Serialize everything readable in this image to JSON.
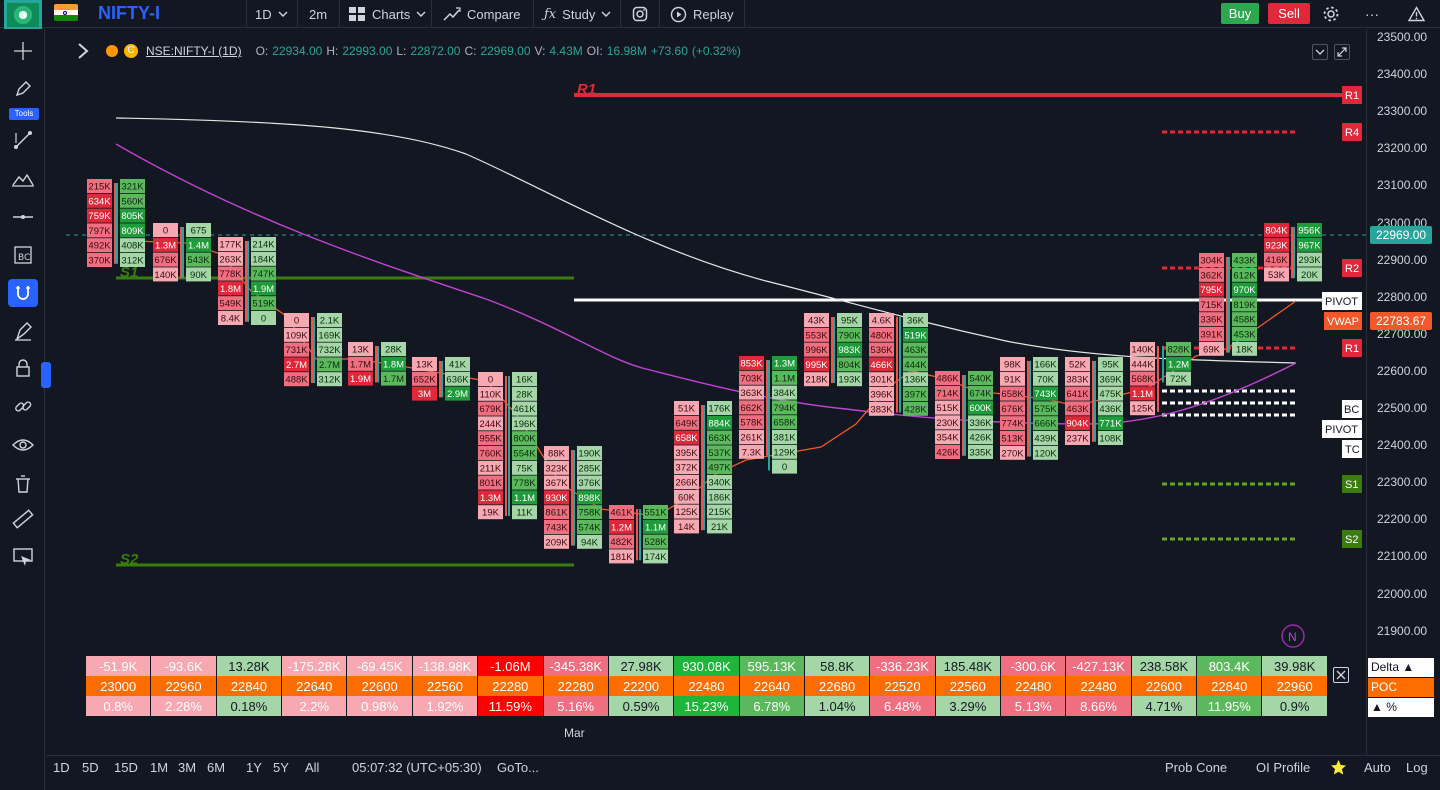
{
  "topbar": {
    "symbol": "NIFTY-I",
    "interval": "1D",
    "interval2": "2m",
    "charts": "Charts",
    "compare": "Compare",
    "study": "Study",
    "replay": "Replay",
    "buy": "Buy",
    "sell": "Sell",
    "more": "···"
  },
  "lefttools": {
    "tools_label": "Tools"
  },
  "legend": {
    "symbol": "NSE:NIFTY-I (1D)",
    "o_label": "O:",
    "o": "22934.00",
    "h_label": "H:",
    "h": "22993.00",
    "l_label": "L:",
    "l": "22872.00",
    "c_label": "C:",
    "c": "22969.00",
    "v_label": "V:",
    "v": "4.43M",
    "oi_label": "OI:",
    "oi": "16.98M",
    "change": "+73.60",
    "change_pct": "(+0.32%)"
  },
  "price_ticks": [
    "23500.00",
    "23400.00",
    "23300.00",
    "23200.00",
    "23100.00",
    "23000.00",
    "22900.00",
    "22800.00",
    "22700.00",
    "22600.00",
    "22500.00",
    "22400.00",
    "22300.00",
    "22200.00",
    "22100.00",
    "22000.00",
    "21900.00"
  ],
  "price_badges": {
    "last": "22969.00",
    "vwap_label": "VWAP",
    "vwap": "22783.67",
    "pivot": "PIVOT",
    "r1": "R1",
    "r2": "R2",
    "r4": "R4",
    "bc": "BC",
    "tc": "TC",
    "s1": "S1",
    "s2": "S2",
    "n": "N"
  },
  "chart_labels": {
    "r1": "R1",
    "s1": "S1",
    "s2": "S2"
  },
  "colors": {
    "up": "#26a69a",
    "down": "#ef5350",
    "accent": "#2962ff",
    "poc": "#ff6d00"
  },
  "footprint": [
    {
      "cells": [
        {
          "t": "215K",
          "c": "r2"
        },
        {
          "t": "634K",
          "c": "r3"
        },
        {
          "t": "759K",
          "c": "r3"
        },
        {
          "t": "797K",
          "c": "r2"
        },
        {
          "t": "492K",
          "c": "r2"
        },
        {
          "t": "370K",
          "c": "r2"
        }
      ]
    },
    {
      "cells": [
        {
          "t": "321K",
          "c": "g2"
        },
        {
          "t": "560K",
          "c": "g2"
        },
        {
          "t": "805K",
          "c": "g3"
        },
        {
          "t": "809K",
          "c": "g3"
        },
        {
          "t": "408K",
          "c": "g1"
        },
        {
          "t": "312K",
          "c": "g1"
        }
      ]
    },
    {
      "cells": [
        {
          "t": "0",
          "c": "r1"
        },
        {
          "t": "1.3M",
          "c": "r3"
        },
        {
          "t": "676K",
          "c": "r2"
        },
        {
          "t": "140K",
          "c": "r1"
        }
      ]
    },
    {
      "cells": [
        {
          "t": "675",
          "c": "g1"
        },
        {
          "t": "1.4M",
          "c": "g3"
        },
        {
          "t": "543K",
          "c": "g2"
        },
        {
          "t": "90K",
          "c": "g1"
        }
      ]
    },
    {
      "cells": [
        {
          "t": "177K",
          "c": "r1"
        },
        {
          "t": "263K",
          "c": "r1"
        },
        {
          "t": "778K",
          "c": "r2"
        },
        {
          "t": "1.8M",
          "c": "r3"
        },
        {
          "t": "549K",
          "c": "r2"
        },
        {
          "t": "8.4K",
          "c": "r1"
        }
      ]
    },
    {
      "cells": [
        {
          "t": "214K",
          "c": "g1"
        },
        {
          "t": "184K",
          "c": "g1"
        },
        {
          "t": "747K",
          "c": "g2"
        },
        {
          "t": "1.9M",
          "c": "g3"
        },
        {
          "t": "519K",
          "c": "g2"
        },
        {
          "t": "0",
          "c": "g1"
        }
      ]
    },
    {
      "cells": [
        {
          "t": "0",
          "c": "r1"
        },
        {
          "t": "109K",
          "c": "r1"
        },
        {
          "t": "731K",
          "c": "r2"
        },
        {
          "t": "2.7M",
          "c": "r3"
        },
        {
          "t": "488K",
          "c": "r2"
        }
      ]
    },
    {
      "cells": [
        {
          "t": "2.1K",
          "c": "g1"
        },
        {
          "t": "169K",
          "c": "g1"
        },
        {
          "t": "732K",
          "c": "g1"
        },
        {
          "t": "2.7M",
          "c": "g2"
        },
        {
          "t": "312K",
          "c": "g1"
        }
      ]
    },
    {
      "cells": [
        {
          "t": "13K",
          "c": "r1"
        },
        {
          "t": "1.7M",
          "c": "r2"
        },
        {
          "t": "1.9M",
          "c": "r3"
        }
      ]
    },
    {
      "cells": [
        {
          "t": "28K",
          "c": "g1"
        },
        {
          "t": "1.8M",
          "c": "g3"
        },
        {
          "t": "1.7M",
          "c": "g2"
        }
      ]
    },
    {
      "cells": [
        {
          "t": "13K",
          "c": "r1"
        },
        {
          "t": "652K",
          "c": "r2"
        },
        {
          "t": "3M",
          "c": "r3"
        }
      ]
    },
    {
      "cells": [
        {
          "t": "41K",
          "c": "g1"
        },
        {
          "t": "636K",
          "c": "g1"
        },
        {
          "t": "2.9M",
          "c": "g3"
        }
      ]
    },
    {
      "cells": [
        {
          "t": "0",
          "c": "r1"
        },
        {
          "t": "110K",
          "c": "r1"
        },
        {
          "t": "679K",
          "c": "r2"
        },
        {
          "t": "244K",
          "c": "r1"
        },
        {
          "t": "955K",
          "c": "r2"
        },
        {
          "t": "760K",
          "c": "r2"
        },
        {
          "t": "211K",
          "c": "r1"
        },
        {
          "t": "801K",
          "c": "r2"
        },
        {
          "t": "1.3M",
          "c": "r3"
        },
        {
          "t": "19K",
          "c": "r1"
        }
      ]
    },
    {
      "cells": [
        {
          "t": "16K",
          "c": "g1"
        },
        {
          "t": "28K",
          "c": "g1"
        },
        {
          "t": "461K",
          "c": "g1"
        },
        {
          "t": "196K",
          "c": "g1"
        },
        {
          "t": "800K",
          "c": "g2"
        },
        {
          "t": "554K",
          "c": "g2"
        },
        {
          "t": "75K",
          "c": "g1"
        },
        {
          "t": "778K",
          "c": "g2"
        },
        {
          "t": "1.1M",
          "c": "g3"
        },
        {
          "t": "11K",
          "c": "g1"
        }
      ]
    },
    {
      "cells": [
        {
          "t": "88K",
          "c": "r1"
        },
        {
          "t": "323K",
          "c": "r1"
        },
        {
          "t": "367K",
          "c": "r1"
        },
        {
          "t": "930K",
          "c": "r3"
        },
        {
          "t": "861K",
          "c": "r2"
        },
        {
          "t": "743K",
          "c": "r2"
        },
        {
          "t": "209K",
          "c": "r1"
        }
      ]
    },
    {
      "cells": [
        {
          "t": "190K",
          "c": "g1"
        },
        {
          "t": "285K",
          "c": "g1"
        },
        {
          "t": "376K",
          "c": "g1"
        },
        {
          "t": "898K",
          "c": "g3"
        },
        {
          "t": "758K",
          "c": "g2"
        },
        {
          "t": "574K",
          "c": "g2"
        },
        {
          "t": "94K",
          "c": "g1"
        }
      ]
    },
    {
      "cells": [
        {
          "t": "461K",
          "c": "r2"
        },
        {
          "t": "1.2M",
          "c": "r3"
        },
        {
          "t": "482K",
          "c": "r2"
        },
        {
          "t": "181K",
          "c": "r1"
        }
      ]
    },
    {
      "cells": [
        {
          "t": "551K",
          "c": "g2"
        },
        {
          "t": "1.1M",
          "c": "g3"
        },
        {
          "t": "528K",
          "c": "g2"
        },
        {
          "t": "174K",
          "c": "g1"
        }
      ]
    },
    {
      "cells": [
        {
          "t": "51K",
          "c": "r1"
        },
        {
          "t": "649K",
          "c": "r2"
        },
        {
          "t": "658K",
          "c": "r3"
        },
        {
          "t": "395K",
          "c": "r1"
        },
        {
          "t": "372K",
          "c": "r1"
        },
        {
          "t": "266K",
          "c": "r1"
        },
        {
          "t": "60K",
          "c": "r1"
        },
        {
          "t": "125K",
          "c": "r1"
        },
        {
          "t": "14K",
          "c": "r1"
        }
      ]
    },
    {
      "cells": [
        {
          "t": "176K",
          "c": "g1"
        },
        {
          "t": "884K",
          "c": "g3"
        },
        {
          "t": "663K",
          "c": "g2"
        },
        {
          "t": "537K",
          "c": "g2"
        },
        {
          "t": "497K",
          "c": "g2"
        },
        {
          "t": "340K",
          "c": "g1"
        },
        {
          "t": "186K",
          "c": "g1"
        },
        {
          "t": "215K",
          "c": "g1"
        },
        {
          "t": "21K",
          "c": "g1"
        }
      ]
    },
    {
      "cells": [
        {
          "t": "853K",
          "c": "r3"
        },
        {
          "t": "703K",
          "c": "r2"
        },
        {
          "t": "363K",
          "c": "r1"
        },
        {
          "t": "662K",
          "c": "r2"
        },
        {
          "t": "578K",
          "c": "r2"
        },
        {
          "t": "261K",
          "c": "r1"
        },
        {
          "t": "7.3K",
          "c": "r1"
        }
      ]
    },
    {
      "cells": [
        {
          "t": "1.3M",
          "c": "g3"
        },
        {
          "t": "1.1M",
          "c": "g2"
        },
        {
          "t": "384K",
          "c": "g1"
        },
        {
          "t": "794K",
          "c": "g2"
        },
        {
          "t": "658K",
          "c": "g2"
        },
        {
          "t": "381K",
          "c": "g1"
        },
        {
          "t": "129K",
          "c": "g1"
        },
        {
          "t": "0",
          "c": "g1"
        }
      ]
    },
    {
      "cells": [
        {
          "t": "43K",
          "c": "r1"
        },
        {
          "t": "553K",
          "c": "r2"
        },
        {
          "t": "996K",
          "c": "r2"
        },
        {
          "t": "995K",
          "c": "r3"
        },
        {
          "t": "218K",
          "c": "r1"
        }
      ]
    },
    {
      "cells": [
        {
          "t": "95K",
          "c": "g1"
        },
        {
          "t": "790K",
          "c": "g2"
        },
        {
          "t": "983K",
          "c": "g3"
        },
        {
          "t": "804K",
          "c": "g2"
        },
        {
          "t": "193K",
          "c": "g1"
        }
      ]
    },
    {
      "cells": [
        {
          "t": "4.6K",
          "c": "r1"
        },
        {
          "t": "480K",
          "c": "r2"
        },
        {
          "t": "536K",
          "c": "r2"
        },
        {
          "t": "466K",
          "c": "r3"
        },
        {
          "t": "301K",
          "c": "r1"
        },
        {
          "t": "396K",
          "c": "r1"
        },
        {
          "t": "383K",
          "c": "r1"
        }
      ]
    },
    {
      "cells": [
        {
          "t": "36K",
          "c": "g1"
        },
        {
          "t": "519K",
          "c": "g3"
        },
        {
          "t": "463K",
          "c": "g2"
        },
        {
          "t": "444K",
          "c": "g2"
        },
        {
          "t": "136K",
          "c": "g1"
        },
        {
          "t": "397K",
          "c": "g2"
        },
        {
          "t": "428K",
          "c": "g2"
        }
      ]
    },
    {
      "cells": [
        {
          "t": "486K",
          "c": "r2"
        },
        {
          "t": "714K",
          "c": "r2"
        },
        {
          "t": "515K",
          "c": "r1"
        },
        {
          "t": "230K",
          "c": "r1"
        },
        {
          "t": "354K",
          "c": "r1"
        },
        {
          "t": "426K",
          "c": "r2"
        }
      ]
    },
    {
      "cells": [
        {
          "t": "540K",
          "c": "g2"
        },
        {
          "t": "674K",
          "c": "g2"
        },
        {
          "t": "600K",
          "c": "g3"
        },
        {
          "t": "336K",
          "c": "g1"
        },
        {
          "t": "426K",
          "c": "g1"
        },
        {
          "t": "335K",
          "c": "g1"
        }
      ]
    },
    {
      "cells": [
        {
          "t": "98K",
          "c": "r1"
        },
        {
          "t": "91K",
          "c": "r1"
        },
        {
          "t": "658K",
          "c": "r2"
        },
        {
          "t": "676K",
          "c": "r2"
        },
        {
          "t": "774K",
          "c": "r2"
        },
        {
          "t": "513K",
          "c": "r2"
        },
        {
          "t": "270K",
          "c": "r1"
        }
      ]
    },
    {
      "cells": [
        {
          "t": "166K",
          "c": "g1"
        },
        {
          "t": "70K",
          "c": "g1"
        },
        {
          "t": "743K",
          "c": "g3"
        },
        {
          "t": "575K",
          "c": "g2"
        },
        {
          "t": "666K",
          "c": "g2"
        },
        {
          "t": "439K",
          "c": "g1"
        },
        {
          "t": "120K",
          "c": "g1"
        }
      ]
    },
    {
      "cells": [
        {
          "t": "52K",
          "c": "r1"
        },
        {
          "t": "383K",
          "c": "r1"
        },
        {
          "t": "641K",
          "c": "r2"
        },
        {
          "t": "463K",
          "c": "r2"
        },
        {
          "t": "904K",
          "c": "r3"
        },
        {
          "t": "237K",
          "c": "r1"
        }
      ]
    },
    {
      "cells": [
        {
          "t": "95K",
          "c": "g1"
        },
        {
          "t": "369K",
          "c": "g1"
        },
        {
          "t": "475K",
          "c": "g1"
        },
        {
          "t": "436K",
          "c": "g1"
        },
        {
          "t": "771K",
          "c": "g3"
        },
        {
          "t": "108K",
          "c": "g1"
        }
      ]
    },
    {
      "cells": [
        {
          "t": "140K",
          "c": "r1"
        },
        {
          "t": "444K",
          "c": "r1"
        },
        {
          "t": "568K",
          "c": "r2"
        },
        {
          "t": "1.1M",
          "c": "r3"
        },
        {
          "t": "125K",
          "c": "r1"
        }
      ]
    },
    {
      "cells": [
        {
          "t": "828K",
          "c": "g2"
        },
        {
          "t": "1.2M",
          "c": "g3"
        },
        {
          "t": "72K",
          "c": "g1"
        }
      ]
    },
    {
      "cells": [
        {
          "t": "304K",
          "c": "r2"
        },
        {
          "t": "362K",
          "c": "r2"
        },
        {
          "t": "795K",
          "c": "r3"
        },
        {
          "t": "715K",
          "c": "r2"
        },
        {
          "t": "336K",
          "c": "r2"
        },
        {
          "t": "391K",
          "c": "r2"
        },
        {
          "t": "69K",
          "c": "r1"
        }
      ]
    },
    {
      "cells": [
        {
          "t": "433K",
          "c": "g2"
        },
        {
          "t": "612K",
          "c": "g2"
        },
        {
          "t": "970K",
          "c": "g3"
        },
        {
          "t": "819K",
          "c": "g2"
        },
        {
          "t": "458K",
          "c": "g2"
        },
        {
          "t": "453K",
          "c": "g2"
        },
        {
          "t": "18K",
          "c": "g1"
        }
      ]
    },
    {
      "cells": [
        {
          "t": "804K",
          "c": "r3"
        },
        {
          "t": "923K",
          "c": "r3"
        },
        {
          "t": "416K",
          "c": "r2"
        },
        {
          "t": "53K",
          "c": "r1"
        }
      ]
    },
    {
      "cells": [
        {
          "t": "956K",
          "c": "g3"
        },
        {
          "t": "967K",
          "c": "g3"
        },
        {
          "t": "293K",
          "c": "g1"
        },
        {
          "t": "20K",
          "c": "g1"
        }
      ]
    }
  ],
  "bottom_table": {
    "delta": [
      {
        "t": "-51.9K",
        "c": "r1"
      },
      {
        "t": "-93.6K",
        "c": "r1"
      },
      {
        "t": "13.28K",
        "c": "g1"
      },
      {
        "t": "-175.28K",
        "c": "r1"
      },
      {
        "t": "-69.45K",
        "c": "r1"
      },
      {
        "t": "-138.98K",
        "c": "r1"
      },
      {
        "t": "-1.06M",
        "c": "r3"
      },
      {
        "t": "-345.38K",
        "c": "r2"
      },
      {
        "t": "27.98K",
        "c": "g1"
      },
      {
        "t": "930.08K",
        "c": "g3"
      },
      {
        "t": "595.13K",
        "c": "g2"
      },
      {
        "t": "58.8K",
        "c": "g1"
      },
      {
        "t": "-336.23K",
        "c": "r2"
      },
      {
        "t": "185.48K",
        "c": "g1"
      },
      {
        "t": "-300.6K",
        "c": "r2"
      },
      {
        "t": "-427.13K",
        "c": "r2"
      },
      {
        "t": "238.58K",
        "c": "g1"
      },
      {
        "t": "803.4K",
        "c": "g2"
      },
      {
        "t": "39.98K",
        "c": "g1"
      }
    ],
    "poc": [
      "23000",
      "22960",
      "22840",
      "22640",
      "22600",
      "22560",
      "22280",
      "22280",
      "22200",
      "22480",
      "22640",
      "22680",
      "22520",
      "22560",
      "22480",
      "22480",
      "22600",
      "22840",
      "22960"
    ],
    "pct": [
      {
        "t": "0.8%",
        "c": "r1"
      },
      {
        "t": "2.28%",
        "c": "r1"
      },
      {
        "t": "0.18%",
        "c": "g1"
      },
      {
        "t": "2.2%",
        "c": "r1"
      },
      {
        "t": "0.98%",
        "c": "r1"
      },
      {
        "t": "1.92%",
        "c": "r1"
      },
      {
        "t": "11.59%",
        "c": "r3"
      },
      {
        "t": "5.16%",
        "c": "r2"
      },
      {
        "t": "0.59%",
        "c": "g1"
      },
      {
        "t": "15.23%",
        "c": "g3"
      },
      {
        "t": "6.78%",
        "c": "g2"
      },
      {
        "t": "1.04%",
        "c": "g1"
      },
      {
        "t": "6.48%",
        "c": "r2"
      },
      {
        "t": "3.29%",
        "c": "g1"
      },
      {
        "t": "5.13%",
        "c": "r2"
      },
      {
        "t": "8.66%",
        "c": "r2"
      },
      {
        "t": "4.71%",
        "c": "g1"
      },
      {
        "t": "11.95%",
        "c": "g2"
      },
      {
        "t": "0.9%",
        "c": "g1"
      }
    ],
    "labels": {
      "delta": "Delta ▲",
      "poc": "POC",
      "pct": "▲ %"
    }
  },
  "time_axis": {
    "mar": "Mar"
  },
  "bottombar": {
    "ranges": [
      "1D",
      "5D",
      "15D",
      "1M",
      "3M",
      "6M",
      "1Y",
      "5Y",
      "All"
    ],
    "clock": "05:07:32 (UTC+05:30)",
    "goto": "GoTo...",
    "prob_cone": "Prob Cone",
    "oi_profile": "OI Profile",
    "auto": "Auto",
    "log": "Log"
  }
}
